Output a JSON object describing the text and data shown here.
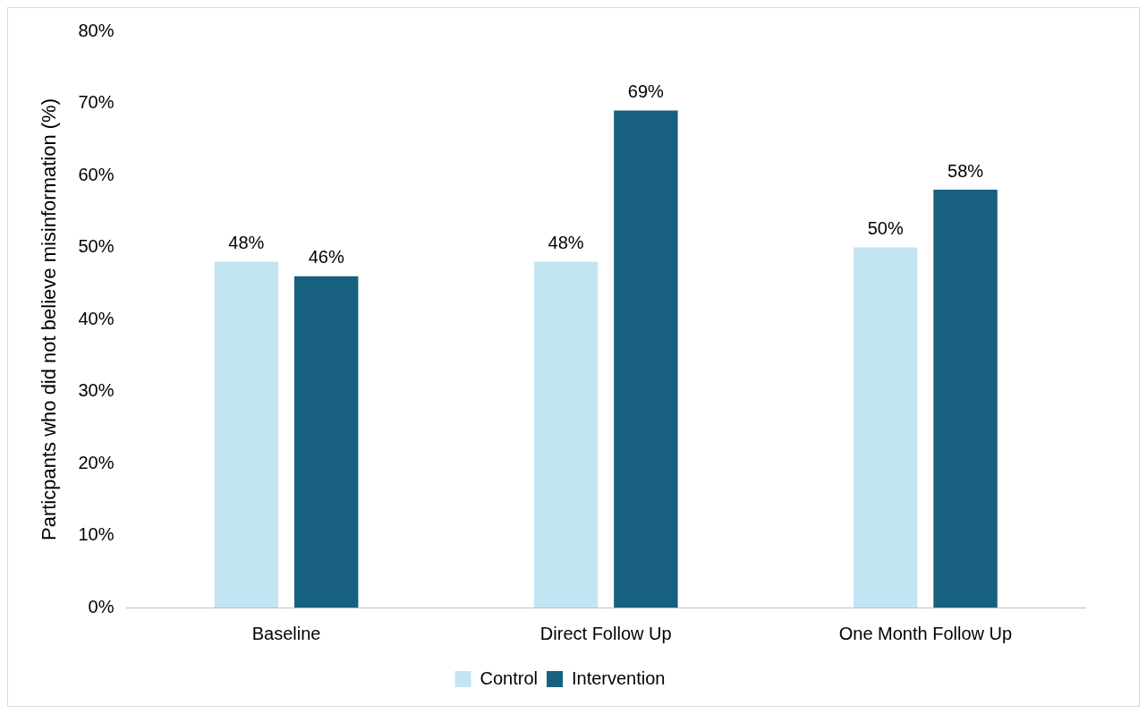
{
  "chart_data": {
    "type": "bar",
    "ylabel": "Particpants who did not believe misinformation (%)",
    "categories": [
      "Baseline",
      "Direct Follow Up",
      "One Month Follow Up"
    ],
    "series": [
      {
        "name": "Control",
        "color": "#c3e4f3",
        "values": [
          48,
          48,
          50
        ],
        "value_labels": [
          "48%",
          "48%",
          "50%"
        ]
      },
      {
        "name": "Intervention",
        "color": "#176080",
        "values": [
          46,
          69,
          58
        ],
        "value_labels": [
          "46%",
          "69%",
          "58%"
        ]
      }
    ],
    "ylim": [
      0,
      80
    ],
    "yticks": [
      {
        "value": 0,
        "label": "0%"
      },
      {
        "value": 10,
        "label": "10%"
      },
      {
        "value": 20,
        "label": "20%"
      },
      {
        "value": 30,
        "label": "30%"
      },
      {
        "value": 40,
        "label": "40%"
      },
      {
        "value": 50,
        "label": "50%"
      },
      {
        "value": 60,
        "label": "60%"
      },
      {
        "value": 70,
        "label": "70%"
      },
      {
        "value": 80,
        "label": "80%"
      }
    ],
    "grid": false,
    "legend": "bottom"
  }
}
